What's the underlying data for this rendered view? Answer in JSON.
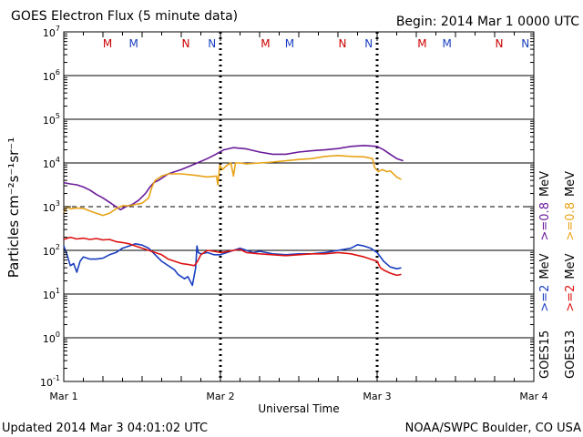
{
  "chart_data": {
    "type": "line",
    "title": "GOES Electron Flux (5 minute data)",
    "begin": "Begin: 2014 Mar 1 0000 UTC",
    "updated": "Updated 2014 Mar  3 04:01:02 UTC",
    "credit": "NOAA/SWPC Boulder, CO USA",
    "xlabel": "Universal Time",
    "ylabel": "Particles cm⁻²s⁻¹sr⁻¹",
    "x_unit": "hours since 2014-03-01 00:00 UTC",
    "xlim": [
      0,
      72
    ],
    "ylim_log10": [
      -1,
      7
    ],
    "x_ticks": [
      {
        "label": "Mar 1",
        "x": 0
      },
      {
        "label": "Mar 2",
        "x": 24
      },
      {
        "label": "Mar 3",
        "x": 48
      },
      {
        "label": "Mar 4",
        "x": 72
      }
    ],
    "y_ticks": [
      {
        "base": "10",
        "exp": "7",
        "log": 7
      },
      {
        "base": "10",
        "exp": "6",
        "log": 6
      },
      {
        "base": "10",
        "exp": "5",
        "log": 5
      },
      {
        "base": "10",
        "exp": "4",
        "log": 4
      },
      {
        "base": "10",
        "exp": "3",
        "log": 3
      },
      {
        "base": "10",
        "exp": "2",
        "log": 2
      },
      {
        "base": "10",
        "exp": "1",
        "log": 1
      },
      {
        "base": "10",
        "exp": "0",
        "log": 0
      },
      {
        "base": "10",
        "exp": "-1",
        "log": -1
      }
    ],
    "grid_logs": [
      6,
      5,
      4,
      2,
      1,
      0
    ],
    "threshold_log": 3,
    "midnight_markers": [
      {
        "x": 24
      },
      {
        "x": 48
      }
    ],
    "mn_markers": [
      {
        "label": "M",
        "x": 6.7,
        "color": "#cc0000"
      },
      {
        "label": "M",
        "x": 10.7,
        "color": "#1a3fbf"
      },
      {
        "label": "N",
        "x": 18.7,
        "color": "#cc0000"
      },
      {
        "label": "N",
        "x": 22.7,
        "color": "#1a3fbf"
      },
      {
        "label": "M",
        "x": 30.9,
        "color": "#cc0000"
      },
      {
        "label": "M",
        "x": 34.6,
        "color": "#1a3fbf"
      },
      {
        "label": "N",
        "x": 42.7,
        "color": "#cc0000"
      },
      {
        "label": "N",
        "x": 46.7,
        "color": "#1a3fbf"
      },
      {
        "label": "M",
        "x": 54.9,
        "color": "#cc0000"
      },
      {
        "label": "M",
        "x": 58.7,
        "color": "#1a3fbf"
      },
      {
        "label": "N",
        "x": 66.7,
        "color": "#cc0000"
      },
      {
        "label": "N",
        "x": 70.7,
        "color": "#1a3fbf"
      }
    ],
    "legend": {
      "col1_sat": "GOES15",
      "col2_sat": "GOES13",
      "col1_low": ">=2",
      "col1_high": ">=0.8",
      "col2_low": ">=2",
      "col2_high": ">=0.8",
      "unit": "MeV"
    },
    "series": [
      {
        "name": "GOES15 >=0.8 MeV",
        "color": "#6a1b9a",
        "points": [
          [
            0,
            3.55
          ],
          [
            1,
            3.52
          ],
          [
            2,
            3.5
          ],
          [
            3,
            3.45
          ],
          [
            4,
            3.38
          ],
          [
            5,
            3.28
          ],
          [
            6,
            3.2
          ],
          [
            7,
            3.1
          ],
          [
            8,
            3.0
          ],
          [
            8.7,
            2.93
          ],
          [
            9.5,
            3.0
          ],
          [
            10.5,
            3.05
          ],
          [
            11.5,
            3.15
          ],
          [
            12.5,
            3.3
          ],
          [
            13.2,
            3.45
          ],
          [
            13.8,
            3.55
          ],
          [
            14.5,
            3.6
          ],
          [
            16,
            3.75
          ],
          [
            18,
            3.85
          ],
          [
            20,
            3.97
          ],
          [
            22,
            4.1
          ],
          [
            23.3,
            4.2
          ],
          [
            24.5,
            4.3
          ],
          [
            26,
            4.35
          ],
          [
            28,
            4.32
          ],
          [
            30,
            4.25
          ],
          [
            32,
            4.2
          ],
          [
            34,
            4.2
          ],
          [
            36,
            4.25
          ],
          [
            38,
            4.28
          ],
          [
            40,
            4.3
          ],
          [
            42,
            4.33
          ],
          [
            44,
            4.38
          ],
          [
            46,
            4.4
          ],
          [
            48,
            4.38
          ],
          [
            49,
            4.3
          ],
          [
            50,
            4.2
          ],
          [
            51,
            4.1
          ],
          [
            52,
            4.05
          ]
        ]
      },
      {
        "name": "GOES13 >=0.8 MeV",
        "color": "#e8a317",
        "points": [
          [
            0,
            2.87
          ],
          [
            0.5,
            3.0
          ],
          [
            1,
            2.95
          ],
          [
            2,
            2.97
          ],
          [
            3,
            2.96
          ],
          [
            4,
            2.9
          ],
          [
            5,
            2.85
          ],
          [
            6,
            2.8
          ],
          [
            7,
            2.85
          ],
          [
            8,
            2.95
          ],
          [
            9,
            3.02
          ],
          [
            10,
            3.02
          ],
          [
            11,
            3.05
          ],
          [
            12,
            3.08
          ],
          [
            13,
            3.2
          ],
          [
            13.5,
            3.45
          ],
          [
            14,
            3.6
          ],
          [
            15,
            3.7
          ],
          [
            16,
            3.75
          ],
          [
            18,
            3.75
          ],
          [
            20,
            3.72
          ],
          [
            22,
            3.68
          ],
          [
            23.4,
            3.7
          ],
          [
            23.6,
            3.5
          ],
          [
            23.9,
            3.95
          ],
          [
            24.3,
            3.85
          ],
          [
            25,
            3.95
          ],
          [
            25.6,
            4.0
          ],
          [
            26,
            3.7
          ],
          [
            26.3,
            4.0
          ],
          [
            27,
            4.0
          ],
          [
            28,
            3.98
          ],
          [
            30,
            4.0
          ],
          [
            32,
            4.02
          ],
          [
            34,
            4.05
          ],
          [
            36,
            4.08
          ],
          [
            38,
            4.1
          ],
          [
            40,
            4.15
          ],
          [
            42,
            4.17
          ],
          [
            44,
            4.15
          ],
          [
            46,
            4.14
          ],
          [
            47.3,
            4.1
          ],
          [
            47.6,
            3.9
          ],
          [
            48.2,
            3.8
          ],
          [
            48.8,
            3.85
          ],
          [
            49.5,
            3.8
          ],
          [
            50,
            3.82
          ],
          [
            51,
            3.68
          ],
          [
            51.7,
            3.62
          ]
        ]
      },
      {
        "name": "GOES15 >=2 MeV",
        "color": "#1a3fbf",
        "points": [
          [
            0,
            2.1
          ],
          [
            0.5,
            1.9
          ],
          [
            1,
            1.65
          ],
          [
            1.5,
            1.7
          ],
          [
            2,
            1.5
          ],
          [
            2.5,
            1.75
          ],
          [
            3,
            1.85
          ],
          [
            4,
            1.8
          ],
          [
            5,
            1.8
          ],
          [
            6,
            1.82
          ],
          [
            7,
            1.9
          ],
          [
            8,
            1.95
          ],
          [
            9,
            2.05
          ],
          [
            10,
            2.1
          ],
          [
            11,
            2.15
          ],
          [
            12,
            2.12
          ],
          [
            13,
            2.05
          ],
          [
            14,
            1.9
          ],
          [
            15,
            1.75
          ],
          [
            16,
            1.65
          ],
          [
            17,
            1.55
          ],
          [
            17.5,
            1.45
          ],
          [
            18,
            1.4
          ],
          [
            18.5,
            1.35
          ],
          [
            19,
            1.4
          ],
          [
            19.7,
            1.2
          ],
          [
            20.2,
            1.6
          ],
          [
            20.4,
            2.1
          ],
          [
            20.6,
            1.95
          ],
          [
            21,
            1.92
          ],
          [
            22,
            1.95
          ],
          [
            23,
            1.9
          ],
          [
            24,
            1.9
          ],
          [
            25,
            1.95
          ],
          [
            26,
            2.0
          ],
          [
            27,
            2.05
          ],
          [
            28,
            2.0
          ],
          [
            29,
            1.95
          ],
          [
            30,
            1.98
          ],
          [
            32,
            1.92
          ],
          [
            34,
            1.9
          ],
          [
            36,
            1.92
          ],
          [
            38,
            1.92
          ],
          [
            40,
            1.95
          ],
          [
            42,
            2.0
          ],
          [
            44,
            2.05
          ],
          [
            45,
            2.13
          ],
          [
            46,
            2.1
          ],
          [
            47,
            2.05
          ],
          [
            48,
            1.95
          ],
          [
            49,
            1.75
          ],
          [
            50,
            1.62
          ],
          [
            51,
            1.58
          ],
          [
            51.7,
            1.6
          ]
        ]
      },
      {
        "name": "GOES13 >=2 MeV",
        "color": "#dd1111",
        "points": [
          [
            0,
            2.25
          ],
          [
            1,
            2.3
          ],
          [
            2,
            2.26
          ],
          [
            3,
            2.28
          ],
          [
            4,
            2.25
          ],
          [
            5,
            2.27
          ],
          [
            6,
            2.24
          ],
          [
            7,
            2.25
          ],
          [
            8,
            2.2
          ],
          [
            9,
            2.18
          ],
          [
            10,
            2.15
          ],
          [
            11,
            2.1
          ],
          [
            12,
            2.05
          ],
          [
            13,
            2.0
          ],
          [
            14,
            1.95
          ],
          [
            15,
            1.9
          ],
          [
            16,
            1.8
          ],
          [
            17,
            1.75
          ],
          [
            18,
            1.7
          ],
          [
            19,
            1.68
          ],
          [
            20,
            1.65
          ],
          [
            20.5,
            1.75
          ],
          [
            21,
            1.9
          ],
          [
            22,
            2.0
          ],
          [
            23,
            1.98
          ],
          [
            24,
            1.95
          ],
          [
            25,
            1.97
          ],
          [
            26,
            2.0
          ],
          [
            27,
            2.02
          ],
          [
            28,
            1.95
          ],
          [
            30,
            1.92
          ],
          [
            32,
            1.9
          ],
          [
            34,
            1.88
          ],
          [
            36,
            1.9
          ],
          [
            38,
            1.92
          ],
          [
            40,
            1.92
          ],
          [
            42,
            1.95
          ],
          [
            44,
            1.92
          ],
          [
            46,
            1.85
          ],
          [
            47,
            1.8
          ],
          [
            48,
            1.75
          ],
          [
            48.5,
            1.6
          ],
          [
            49,
            1.55
          ],
          [
            50,
            1.48
          ],
          [
            51,
            1.43
          ],
          [
            51.7,
            1.45
          ]
        ]
      }
    ]
  }
}
